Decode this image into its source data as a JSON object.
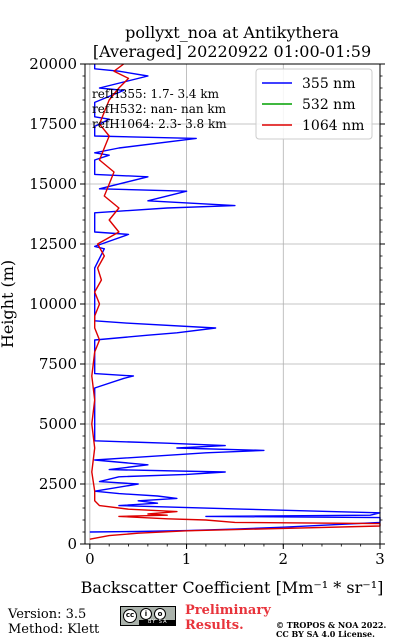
{
  "chart_data": {
    "type": "line",
    "title": "pollyxt_noa at Antikythera",
    "subtitle": "[Averaged] 20220922 01:00-01:59",
    "xlabel": "Backscatter Coefficient [Mm⁻¹ * sr⁻¹]",
    "ylabel": "Height (m)",
    "xlim": [
      -0.05,
      3
    ],
    "ylim": [
      0,
      20000
    ],
    "xticks": [
      0,
      1,
      2,
      3
    ],
    "yticks": [
      0,
      2500,
      5000,
      7500,
      10000,
      12500,
      15000,
      17500,
      20000
    ],
    "grid": true,
    "legend_position": "top-right",
    "annotations": [
      "refH355:  1.7- 3.4 km",
      "refH532:  nan- nan km",
      "refH1064:  2.3- 3.8 km"
    ],
    "series": [
      {
        "name": "355 nm",
        "color": "#0000ff",
        "points": [
          [
            0.0,
            500
          ],
          [
            0.5,
            520
          ],
          [
            1.0,
            560
          ],
          [
            1.5,
            620
          ],
          [
            2.0,
            700
          ],
          [
            2.5,
            800
          ],
          [
            3.0,
            900
          ],
          [
            3.0,
            1000
          ],
          [
            3.0,
            1100
          ],
          [
            1.2,
            1150
          ],
          [
            2.9,
            1200
          ],
          [
            3.0,
            1300
          ],
          [
            2.5,
            1350
          ],
          [
            1.6,
            1450
          ],
          [
            0.3,
            1600
          ],
          [
            0.7,
            1700
          ],
          [
            0.5,
            1800
          ],
          [
            0.9,
            1900
          ],
          [
            0.7,
            2000
          ],
          [
            0.3,
            2100
          ],
          [
            0.05,
            2200
          ],
          [
            0.5,
            2500
          ],
          [
            0.1,
            2600
          ],
          [
            0.3,
            2800
          ],
          [
            1.0,
            2900
          ],
          [
            1.4,
            3000
          ],
          [
            0.2,
            3100
          ],
          [
            0.6,
            3300
          ],
          [
            0.05,
            3500
          ],
          [
            1.2,
            3800
          ],
          [
            1.8,
            3900
          ],
          [
            0.9,
            4000
          ],
          [
            1.4,
            4100
          ],
          [
            0.8,
            4200
          ],
          [
            0.05,
            4300
          ],
          [
            0.05,
            5000
          ],
          [
            0.05,
            6500
          ],
          [
            0.35,
            6900
          ],
          [
            0.45,
            7000
          ],
          [
            0.05,
            7100
          ],
          [
            0.05,
            7500
          ],
          [
            0.05,
            8500
          ],
          [
            0.6,
            8700
          ],
          [
            0.9,
            8800
          ],
          [
            1.3,
            9000
          ],
          [
            0.4,
            9200
          ],
          [
            0.05,
            9300
          ],
          [
            0.05,
            11500
          ],
          [
            0.15,
            12300
          ],
          [
            0.05,
            12400
          ],
          [
            0.4,
            12900
          ],
          [
            0.05,
            13000
          ],
          [
            0.05,
            13800
          ],
          [
            0.8,
            14000
          ],
          [
            1.5,
            14100
          ],
          [
            0.6,
            14300
          ],
          [
            1.0,
            14700
          ],
          [
            0.1,
            14800
          ],
          [
            0.6,
            15300
          ],
          [
            0.05,
            15400
          ],
          [
            0.05,
            16000
          ],
          [
            0.2,
            16200
          ],
          [
            0.05,
            16300
          ],
          [
            0.3,
            16500
          ],
          [
            1.1,
            16900
          ],
          [
            0.05,
            17000
          ],
          [
            0.05,
            17400
          ],
          [
            0.2,
            17700
          ],
          [
            0.05,
            17800
          ],
          [
            0.05,
            18400
          ],
          [
            0.35,
            18900
          ],
          [
            0.1,
            19000
          ],
          [
            0.6,
            19500
          ],
          [
            0.3,
            19700
          ],
          [
            0.05,
            19800
          ],
          [
            0.05,
            20000
          ]
        ]
      },
      {
        "name": "532 nm",
        "color": "#00a000",
        "points": []
      },
      {
        "name": "1064 nm",
        "color": "#dd0000",
        "points": [
          [
            0.0,
            200
          ],
          [
            0.2,
            350
          ],
          [
            0.5,
            450
          ],
          [
            1.0,
            550
          ],
          [
            2.0,
            650
          ],
          [
            3.0,
            750
          ],
          [
            3.0,
            850
          ],
          [
            1.5,
            900
          ],
          [
            1.2,
            1000
          ],
          [
            0.8,
            1050
          ],
          [
            0.3,
            1150
          ],
          [
            0.8,
            1200
          ],
          [
            0.6,
            1250
          ],
          [
            0.9,
            1350
          ],
          [
            0.4,
            1450
          ],
          [
            0.1,
            1600
          ],
          [
            0.05,
            1800
          ],
          [
            0.05,
            2200
          ],
          [
            0.02,
            3000
          ],
          [
            0.05,
            4000
          ],
          [
            0.02,
            5000
          ],
          [
            0.05,
            6000
          ],
          [
            0.02,
            7000
          ],
          [
            0.05,
            8000
          ],
          [
            0.1,
            8500
          ],
          [
            0.05,
            9000
          ],
          [
            0.05,
            9500
          ],
          [
            0.1,
            10000
          ],
          [
            0.05,
            10500
          ],
          [
            0.12,
            11000
          ],
          [
            0.08,
            11500
          ],
          [
            0.15,
            12000
          ],
          [
            0.08,
            12500
          ],
          [
            0.3,
            13000
          ],
          [
            0.2,
            13500
          ],
          [
            0.3,
            14000
          ],
          [
            0.15,
            14500
          ],
          [
            0.2,
            15000
          ],
          [
            0.25,
            15500
          ],
          [
            0.1,
            16000
          ],
          [
            0.15,
            16500
          ],
          [
            0.2,
            17000
          ],
          [
            0.1,
            17500
          ],
          [
            0.15,
            18000
          ],
          [
            0.2,
            18500
          ],
          [
            0.3,
            19000
          ],
          [
            0.4,
            19400
          ],
          [
            0.25,
            19700
          ],
          [
            0.35,
            20000
          ]
        ]
      }
    ]
  },
  "footer": {
    "version": "Version: 3.5",
    "method": "Method: Klett",
    "prelim_line1": "Preliminary",
    "prelim_line2": "Results.",
    "copyright_line1": "© TROPOS & NOA 2022.",
    "copyright_line2": "CC BY SA 4.0 License.",
    "badge_text": "BY SA",
    "badge_icon": "creative-commons-icon"
  }
}
